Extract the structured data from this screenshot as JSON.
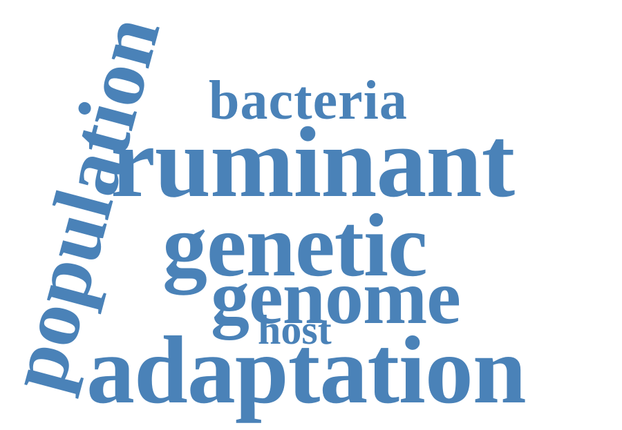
{
  "cloud": {
    "color": "#4a82b8",
    "words": {
      "population": "population",
      "bacteria": "bacteria",
      "ruminant": "ruminant",
      "genetic": "genetic",
      "genome": "genome",
      "host": "host",
      "adaptation": "adaptation"
    }
  }
}
